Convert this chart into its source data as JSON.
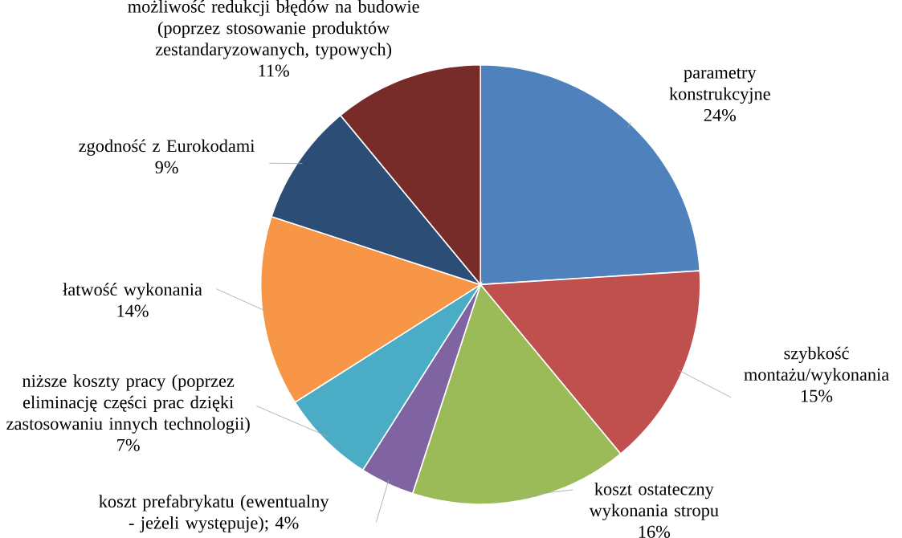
{
  "chart_data": {
    "type": "pie",
    "categories": [
      "parametry konstrukcyjne",
      "szybkość montażu/wykonania",
      "koszt ostateczny wykonania stropu",
      "koszt prefabrykatu (ewentualny - jeżeli występuje)",
      "niższe koszty pracy (poprzez eliminację części prac dzięki zastosowaniu innych technologii)",
      "łatwość wykonania",
      "zgodność z Eurokodami",
      "możliwość redukcji błędów na budowie (poprzez stosowanie produktów zestandaryzowanych, typowych)"
    ],
    "values": [
      24,
      15,
      16,
      4,
      7,
      14,
      9,
      11
    ],
    "colors": [
      "#4f81bd",
      "#c0504d",
      "#9bbb59",
      "#8064a2",
      "#4bacc6",
      "#f79646",
      "#2c4d75",
      "#772c2a"
    ],
    "value_labels": [
      "24%",
      "15%",
      "16%",
      "; 4%",
      "7%",
      "14%",
      "9%",
      "11%"
    ]
  }
}
